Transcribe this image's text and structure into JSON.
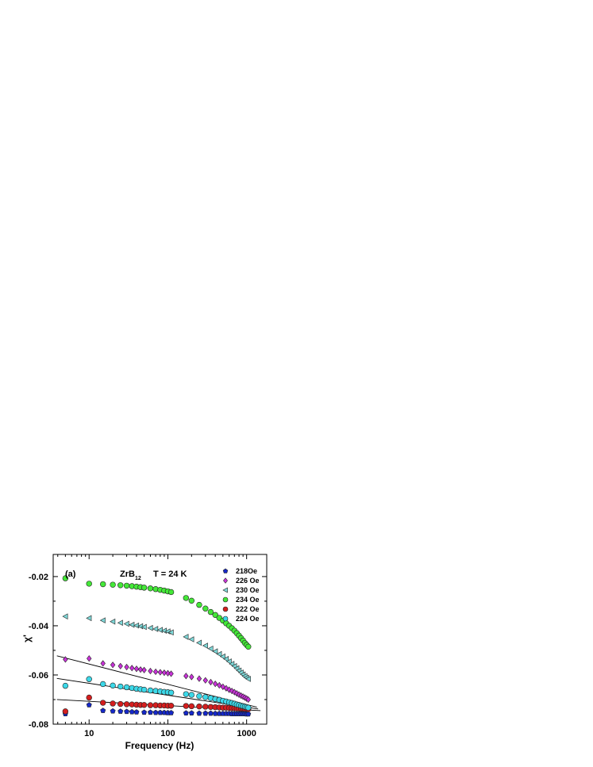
{
  "chart_data": {
    "type": "scatter",
    "xlabel": "Frequency (Hz)",
    "ylabel": "χ'",
    "xscale": "log",
    "xlim": [
      3.5,
      1800
    ],
    "ylim": [
      -0.08,
      -0.011
    ],
    "xticks": [
      10,
      100,
      1000
    ],
    "xtick_labels": [
      "10",
      "100",
      "1000"
    ],
    "yticks": [
      -0.08,
      -0.06,
      -0.04,
      -0.02
    ],
    "ytick_labels": [
      "-0.08",
      "-0.06",
      "-0.04",
      "-0.02"
    ],
    "grid": false,
    "legend_position": "top-right",
    "annotations": {
      "panel": "(a)",
      "compound_main": "ZrB",
      "compound_sub": "12",
      "temperature": "T = 24 K"
    },
    "series": [
      {
        "name": "218Oe",
        "marker": "pentagon",
        "color": "#1528c8",
        "x": [
          5,
          10,
          15,
          20,
          25,
          30,
          35,
          40,
          50,
          60,
          70,
          80,
          90,
          100,
          110,
          170,
          200,
          250,
          300,
          350,
          400,
          450,
          500,
          550,
          600,
          650,
          700,
          750,
          800,
          850,
          900,
          950,
          1000,
          1050
        ],
        "y": [
          -0.0758,
          -0.0722,
          -0.0745,
          -0.0747,
          -0.0748,
          -0.0749,
          -0.075,
          -0.0751,
          -0.0752,
          -0.0752,
          -0.0753,
          -0.0753,
          -0.0753,
          -0.0754,
          -0.0754,
          -0.0755,
          -0.0755,
          -0.0756,
          -0.0756,
          -0.0756,
          -0.0757,
          -0.0757,
          -0.0757,
          -0.0757,
          -0.0757,
          -0.0758,
          -0.0758,
          -0.0758,
          -0.0758,
          -0.0758,
          -0.0758,
          -0.0758,
          -0.0759,
          -0.0759
        ]
      },
      {
        "name": "226 Oe",
        "marker": "diamond",
        "color": "#c832d8",
        "x": [
          5,
          10,
          15,
          20,
          25,
          30,
          35,
          40,
          45,
          50,
          60,
          70,
          80,
          90,
          100,
          110,
          170,
          200,
          250,
          300,
          350,
          400,
          450,
          500,
          550,
          600,
          650,
          700,
          750,
          800,
          850,
          900,
          950,
          1000,
          1050
        ],
        "y": [
          -0.0537,
          -0.0533,
          -0.0553,
          -0.0559,
          -0.0564,
          -0.0568,
          -0.0572,
          -0.0575,
          -0.0578,
          -0.058,
          -0.0584,
          -0.0587,
          -0.0589,
          -0.0591,
          -0.0593,
          -0.0595,
          -0.0604,
          -0.0608,
          -0.0615,
          -0.0622,
          -0.0629,
          -0.0636,
          -0.0642,
          -0.0648,
          -0.0654,
          -0.066,
          -0.0665,
          -0.067,
          -0.0675,
          -0.068,
          -0.0684,
          -0.0688,
          -0.0692,
          -0.0696,
          -0.07
        ]
      },
      {
        "name": "230 Oe",
        "marker": "triangle-left",
        "color": "#7ed8d8",
        "x": [
          5,
          10,
          15,
          20,
          25,
          30,
          35,
          40,
          45,
          50,
          60,
          70,
          80,
          90,
          100,
          110,
          170,
          200,
          250,
          300,
          350,
          400,
          450,
          500,
          550,
          600,
          650,
          700,
          750,
          800,
          850,
          900,
          950,
          1000,
          1050
        ],
        "y": [
          -0.0362,
          -0.0369,
          -0.0378,
          -0.0383,
          -0.0388,
          -0.0392,
          -0.0396,
          -0.0399,
          -0.0402,
          -0.0405,
          -0.0409,
          -0.0413,
          -0.0417,
          -0.042,
          -0.0423,
          -0.0427,
          -0.0445,
          -0.0455,
          -0.0469,
          -0.0481,
          -0.0493,
          -0.0504,
          -0.0515,
          -0.0525,
          -0.0535,
          -0.0545,
          -0.0555,
          -0.0564,
          -0.0573,
          -0.0582,
          -0.059,
          -0.0598,
          -0.0605,
          -0.0611,
          -0.0616
        ]
      },
      {
        "name": "234 Oe",
        "marker": "circle",
        "color": "#44e838",
        "x": [
          5,
          10,
          15,
          20,
          25,
          30,
          35,
          40,
          45,
          50,
          60,
          70,
          80,
          90,
          100,
          110,
          170,
          200,
          250,
          300,
          350,
          400,
          450,
          500,
          550,
          600,
          650,
          700,
          750,
          800,
          850,
          900,
          950,
          1000,
          1050
        ],
        "y": [
          -0.0207,
          -0.0229,
          -0.0231,
          -0.0233,
          -0.0235,
          -0.0237,
          -0.0239,
          -0.0241,
          -0.0243,
          -0.0245,
          -0.0248,
          -0.0251,
          -0.0254,
          -0.0257,
          -0.026,
          -0.0263,
          -0.0287,
          -0.0298,
          -0.0315,
          -0.033,
          -0.0344,
          -0.0356,
          -0.0368,
          -0.0379,
          -0.039,
          -0.04,
          -0.041,
          -0.042,
          -0.043,
          -0.044,
          -0.045,
          -0.046,
          -0.047,
          -0.0478,
          -0.0485
        ]
      },
      {
        "name": "222 Oe",
        "marker": "circle",
        "color": "#d41e1e",
        "x": [
          5,
          10,
          15,
          20,
          25,
          30,
          35,
          40,
          45,
          50,
          60,
          70,
          80,
          90,
          100,
          110,
          170,
          200,
          250,
          300,
          350,
          400,
          450,
          500,
          550,
          600,
          650,
          700,
          750,
          800,
          850,
          900,
          950,
          1000,
          1050
        ],
        "y": [
          -0.0748,
          -0.0692,
          -0.0713,
          -0.0716,
          -0.0718,
          -0.0719,
          -0.072,
          -0.0721,
          -0.0722,
          -0.0722,
          -0.0723,
          -0.0723,
          -0.0724,
          -0.0724,
          -0.0725,
          -0.0725,
          -0.0726,
          -0.0727,
          -0.0728,
          -0.0729,
          -0.073,
          -0.0731,
          -0.0732,
          -0.0733,
          -0.0733,
          -0.0734,
          -0.0735,
          -0.0735,
          -0.0736,
          -0.0736,
          -0.0737,
          -0.0737,
          -0.0738,
          -0.0738,
          -0.0739
        ]
      },
      {
        "name": "224 Oe",
        "marker": "circle",
        "color": "#3cd8e8",
        "x": [
          5,
          10,
          15,
          20,
          25,
          30,
          35,
          40,
          45,
          50,
          60,
          70,
          80,
          90,
          100,
          110,
          170,
          200,
          250,
          300,
          350,
          400,
          450,
          500,
          550,
          600,
          650,
          700,
          750,
          800,
          850,
          900,
          950,
          1000,
          1050
        ],
        "y": [
          -0.0644,
          -0.0617,
          -0.0637,
          -0.0643,
          -0.0647,
          -0.065,
          -0.0653,
          -0.0656,
          -0.0658,
          -0.066,
          -0.0663,
          -0.0665,
          -0.0667,
          -0.0669,
          -0.067,
          -0.0672,
          -0.0678,
          -0.0681,
          -0.0686,
          -0.069,
          -0.0694,
          -0.0698,
          -0.0701,
          -0.0705,
          -0.0708,
          -0.0711,
          -0.0714,
          -0.0717,
          -0.072,
          -0.0722,
          -0.0725,
          -0.0727,
          -0.0729,
          -0.0731,
          -0.0733
        ]
      }
    ],
    "fit_lines": [
      {
        "x": [
          3.9,
          1350
        ],
        "y": [
          -0.0522,
          -0.0731
        ]
      },
      {
        "x": [
          3.9,
          1400
        ],
        "y": [
          -0.0614,
          -0.0738
        ]
      },
      {
        "x": [
          3.9,
          1500
        ],
        "y": [
          -0.07,
          -0.0745
        ]
      }
    ]
  }
}
